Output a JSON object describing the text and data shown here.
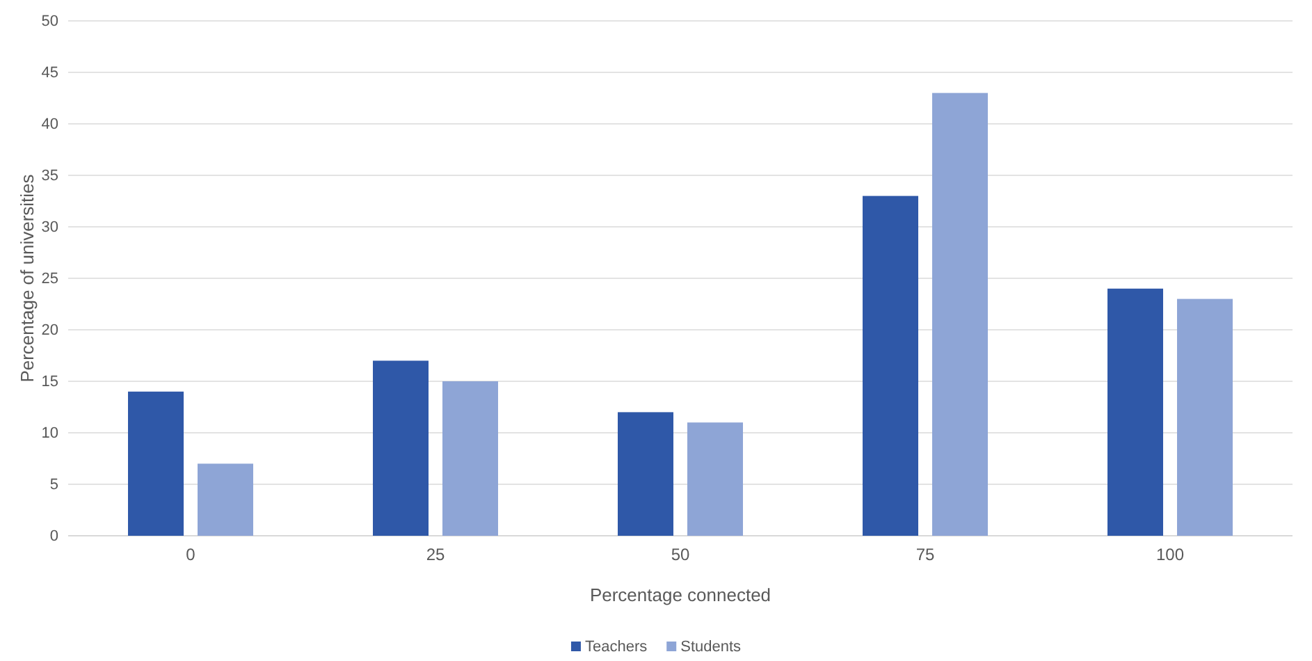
{
  "chart_data": {
    "type": "bar",
    "xlabel": "Percentage connected",
    "ylabel": "Percentage of universities",
    "categories": [
      "0",
      "25",
      "50",
      "75",
      "100"
    ],
    "series": [
      {
        "name": "Teachers",
        "color": "#2f58a8",
        "values": [
          14,
          17,
          12,
          33,
          24
        ]
      },
      {
        "name": "Students",
        "color": "#8ea5d6",
        "values": [
          7,
          15,
          11,
          43,
          23
        ]
      }
    ],
    "ylim": [
      0,
      50
    ],
    "yticks": [
      0,
      5,
      10,
      15,
      20,
      25,
      30,
      35,
      40,
      45,
      50
    ],
    "grid": "y",
    "legend": "bottom"
  }
}
